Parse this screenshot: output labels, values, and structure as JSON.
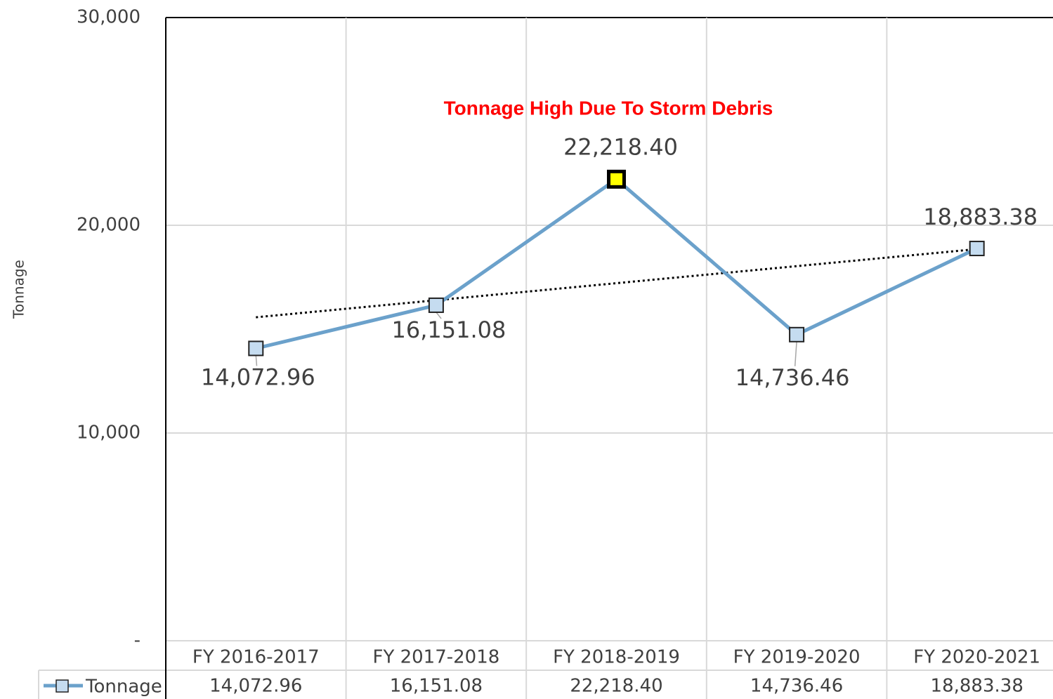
{
  "chart_data": {
    "type": "line",
    "y_axis_label": "Tonnage",
    "annotation": "Tonnage High Due To Storm Debris",
    "categories": [
      "FY 2016-2017",
      "FY 2017-2018",
      "FY 2018-2019",
      "FY 2019-2020",
      "FY 2020-2021"
    ],
    "series": [
      {
        "name": "Tonnage",
        "color": "#6ba1cb",
        "values": [
          14072.96,
          16151.08,
          22218.4,
          14736.46,
          18883.38
        ],
        "value_labels": [
          "14,072.96",
          "16,151.08",
          "22,218.40",
          "14,736.46",
          "18,883.38"
        ],
        "marker_fill": [
          "#c5dcf0",
          "#c5dcf0",
          "#ffff00",
          "#c5dcf0",
          "#c5dcf0"
        ]
      }
    ],
    "ylim": [
      0,
      30000
    ],
    "yticks": [
      {
        "value": 0,
        "label": "-"
      },
      {
        "value": 10000,
        "label": "10,000"
      },
      {
        "value": 20000,
        "label": "20,000"
      },
      {
        "value": 30000,
        "label": "30,000"
      }
    ],
    "grid": true,
    "trendline": "linear",
    "data_table": true
  }
}
